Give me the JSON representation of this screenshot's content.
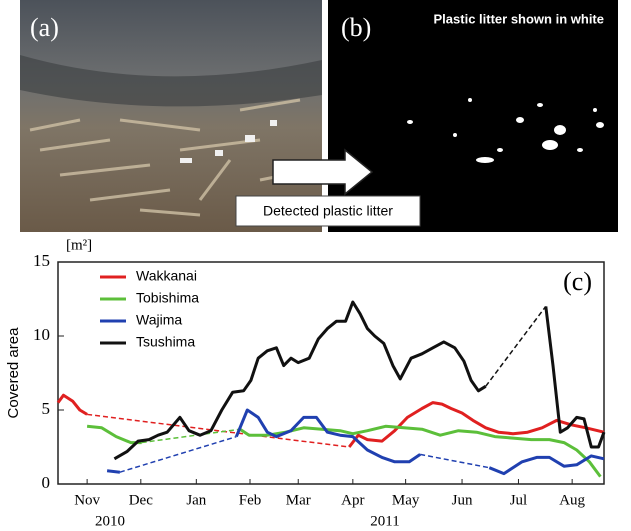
{
  "panels": {
    "a": {
      "label": "(a)"
    },
    "b": {
      "label": "(b)",
      "caption": "Plastic litter shown in white"
    },
    "arrow_label": "Detected plastic litter"
  },
  "chart_data": {
    "type": "line",
    "panel_label": "(c)",
    "unit": "[m²]",
    "ylabel": "Covered area",
    "ylim": [
      0,
      15
    ],
    "yticks": [
      0,
      5,
      10,
      15
    ],
    "xlim": [
      0,
      300
    ],
    "xticks": [
      {
        "value": 16,
        "label": "Nov"
      },
      {
        "value": 45.5,
        "label": "Dec"
      },
      {
        "value": 76,
        "label": "Jan"
      },
      {
        "value": 105.5,
        "label": "Feb"
      },
      {
        "value": 132,
        "label": "Mar"
      },
      {
        "value": 162,
        "label": "Apr"
      },
      {
        "value": 191,
        "label": "May"
      },
      {
        "value": 222,
        "label": "Jun"
      },
      {
        "value": 253,
        "label": "Jul"
      },
      {
        "value": 282.5,
        "label": "Aug"
      }
    ],
    "year_labels": [
      "2010",
      "2011"
    ],
    "legend": "upper left",
    "series": [
      {
        "name": "Wakkanai",
        "color": "#e02020",
        "x": [
          0,
          3,
          8,
          12,
          16,
          90,
          160,
          165,
          170,
          178,
          185,
          192,
          200,
          206,
          211,
          216,
          222,
          228,
          235,
          242,
          250,
          258,
          266,
          274,
          282,
          290,
          300
        ],
        "values": [
          5.5,
          6.0,
          5.6,
          5.0,
          4.7,
          null,
          2.5,
          3.3,
          3.0,
          2.9,
          3.6,
          4.5,
          5.1,
          5.5,
          5.4,
          5.1,
          4.8,
          4.3,
          3.8,
          3.5,
          3.4,
          3.5,
          3.8,
          4.3,
          4.0,
          3.8,
          3.5
        ]
      },
      {
        "name": "Tobishima",
        "color": "#5cbf3a",
        "x": [
          16,
          24,
          32,
          40,
          46,
          70,
          100,
          105,
          115,
          125,
          135,
          145,
          155,
          162,
          170,
          180,
          190,
          200,
          210,
          220,
          230,
          240,
          250,
          260,
          270,
          278,
          285,
          292,
          298
        ],
        "values": [
          3.9,
          3.8,
          3.2,
          2.8,
          2.8,
          null,
          3.7,
          3.3,
          3.3,
          3.5,
          3.8,
          3.7,
          3.6,
          3.4,
          3.6,
          3.9,
          3.8,
          3.7,
          3.3,
          3.6,
          3.5,
          3.2,
          3.1,
          3.0,
          3.0,
          2.8,
          2.3,
          1.5,
          0.5
        ]
      },
      {
        "name": "Wajima",
        "color": "#2040b0",
        "x": [
          27,
          34,
          65,
          98,
          104,
          110,
          115,
          120,
          128,
          135,
          142,
          148,
          155,
          162,
          170,
          178,
          185,
          193,
          199,
          215,
          237,
          245,
          255,
          263,
          270,
          278,
          285,
          293,
          300
        ],
        "values": [
          0.9,
          0.8,
          null,
          3.2,
          5.0,
          4.5,
          3.5,
          3.2,
          3.6,
          4.5,
          4.5,
          3.5,
          3.3,
          3.2,
          2.3,
          1.8,
          1.5,
          1.5,
          2.0,
          null,
          1.1,
          0.7,
          1.5,
          1.8,
          1.8,
          1.2,
          1.3,
          1.9,
          1.7
        ]
      },
      {
        "name": "Tsushima",
        "color": "#111111",
        "x": [
          31,
          38,
          44,
          50,
          55,
          60,
          67,
          72,
          78,
          84,
          90,
          96,
          102,
          106,
          110,
          115,
          120,
          124,
          128,
          132,
          138,
          143,
          148,
          153,
          158,
          162,
          166,
          170,
          174,
          179,
          184,
          188,
          194,
          200,
          206,
          212,
          218,
          223,
          227,
          231,
          235,
          250,
          268,
          272,
          276,
          280,
          285,
          289,
          293,
          297,
          300
        ],
        "values": [
          1.7,
          2.2,
          2.9,
          3.0,
          3.3,
          3.5,
          4.5,
          3.6,
          3.3,
          3.6,
          5.0,
          6.2,
          6.3,
          7.0,
          8.5,
          9.0,
          9.2,
          8.0,
          8.5,
          8.2,
          8.5,
          9.8,
          10.5,
          11.0,
          11.0,
          12.3,
          11.5,
          10.5,
          10.0,
          9.5,
          8.0,
          7.1,
          8.5,
          8.8,
          9.2,
          9.6,
          9.2,
          8.3,
          7.0,
          6.3,
          6.6,
          null,
          12.0,
          8.0,
          3.5,
          3.8,
          4.5,
          4.4,
          2.5,
          2.5,
          3.5
        ]
      }
    ]
  }
}
